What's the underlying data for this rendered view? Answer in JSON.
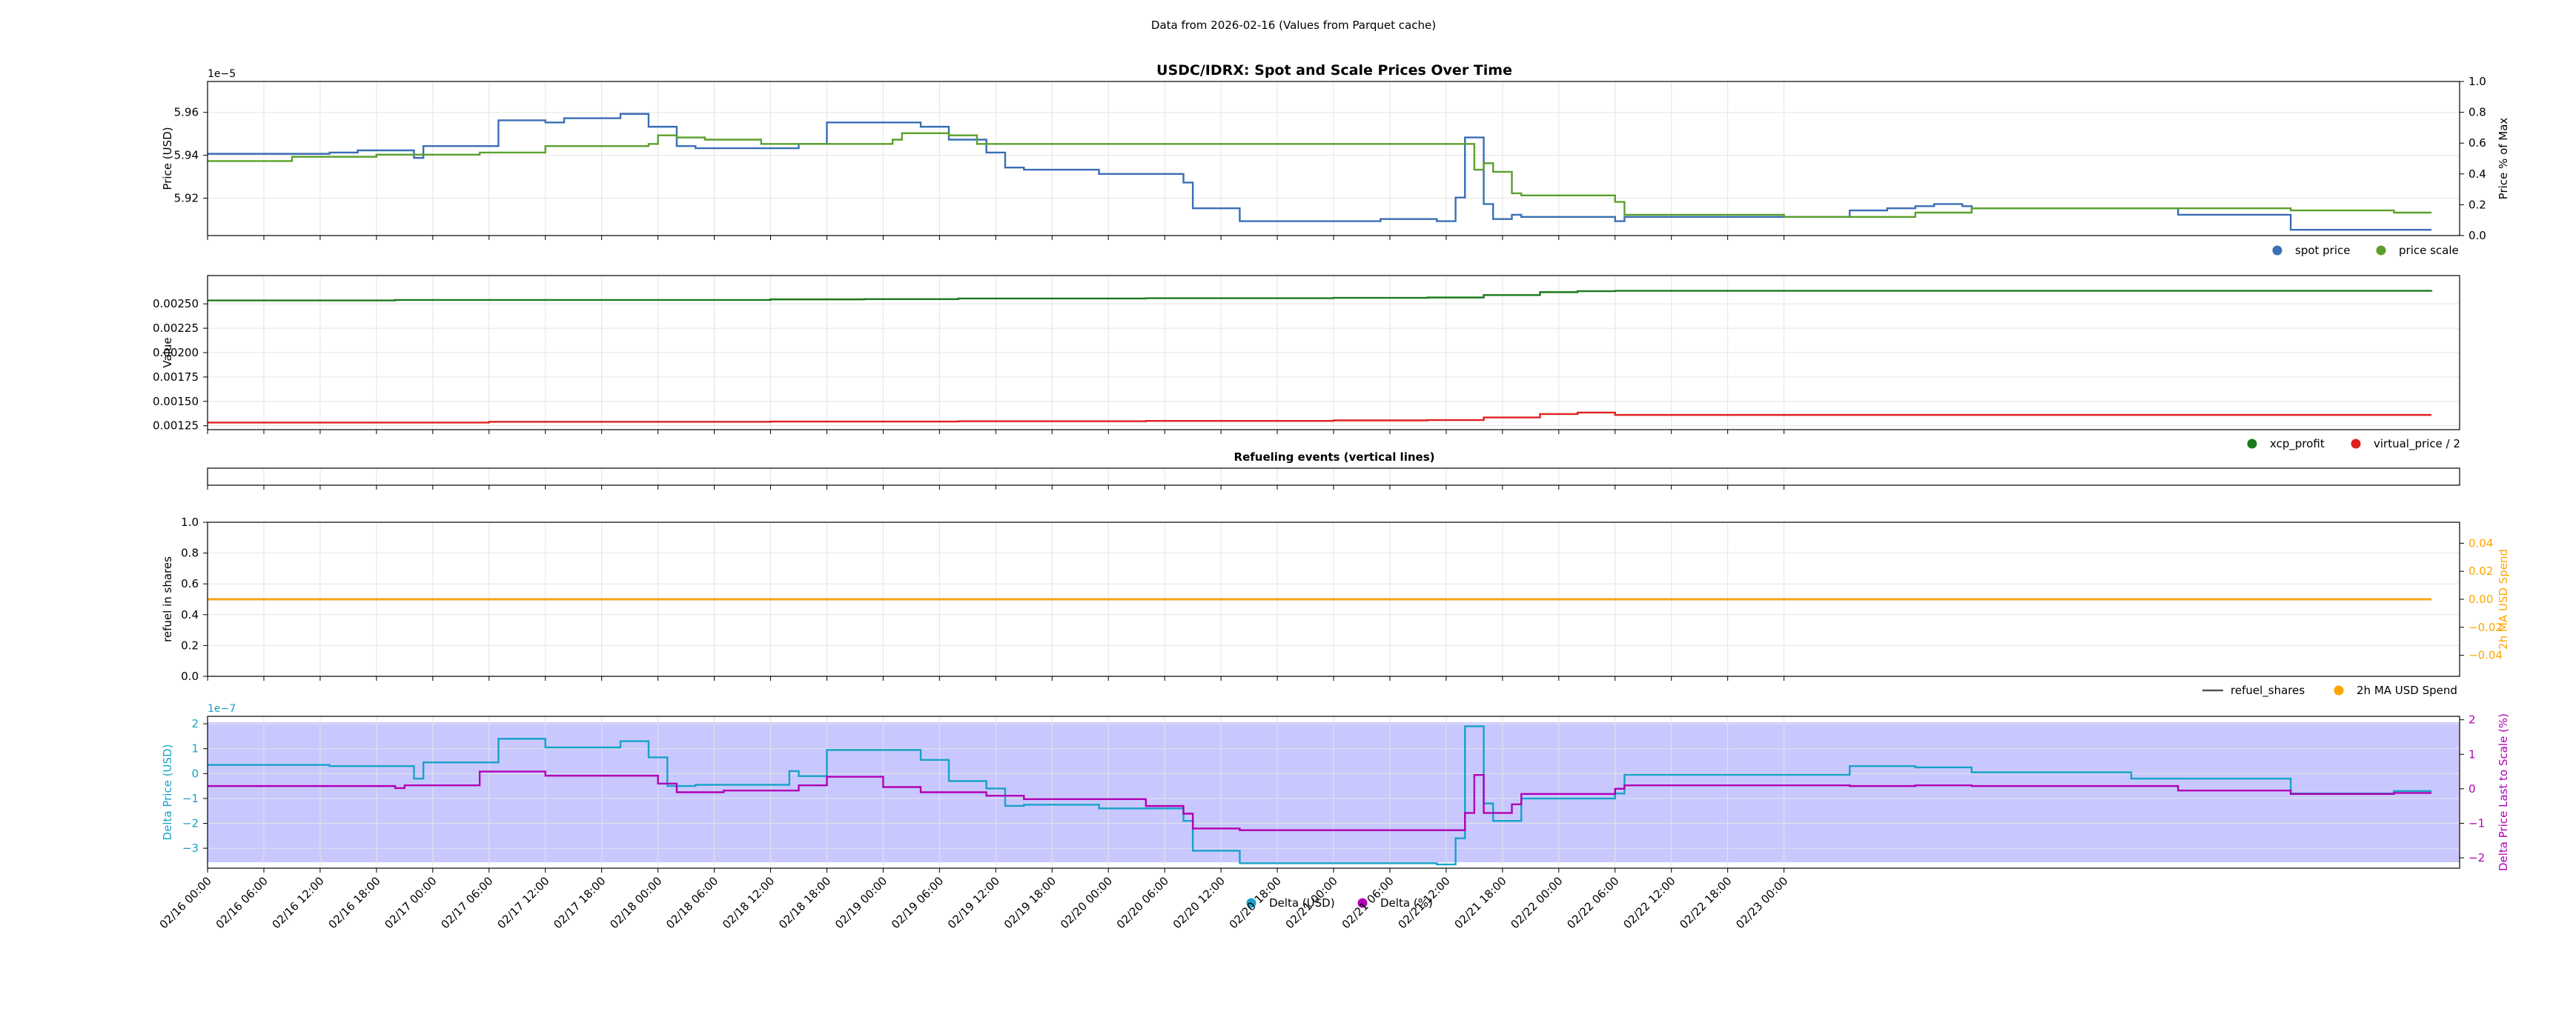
{
  "header": {
    "suptitle": "Data from 2026-02-16 (Values from Parquet cache)"
  },
  "x_axis": {
    "start": "02/16 00:00",
    "end": "02/23 00:00",
    "ticks": [
      "02/16 00:00",
      "02/16 06:00",
      "02/16 12:00",
      "02/16 18:00",
      "02/17 00:00",
      "02/17 06:00",
      "02/17 12:00",
      "02/17 18:00",
      "02/18 00:00",
      "02/18 06:00",
      "02/18 12:00",
      "02/18 18:00",
      "02/19 00:00",
      "02/19 06:00",
      "02/19 12:00",
      "02/19 18:00",
      "02/20 00:00",
      "02/20 06:00",
      "02/20 12:00",
      "02/20 18:00",
      "02/21 00:00",
      "02/21 06:00",
      "02/21 12:00",
      "02/21 18:00",
      "02/22 00:00",
      "02/22 06:00",
      "02/22 12:00",
      "02/22 18:00",
      "02/23 00:00"
    ]
  },
  "colors": {
    "spot": "#3a6eb5",
    "scale": "#5aa02c",
    "xcp": "#1b7a1b",
    "vp": "#e02020",
    "refuel": "#555555",
    "ma": "#ffa500",
    "delta_usd": "#17a2c8",
    "delta_pct": "#b000b5",
    "band": "#c8c8ff",
    "grid": "#e4e4e4"
  },
  "chart_data": [
    {
      "type": "line",
      "title": "USDC/IDRX: Spot and Scale Prices Over Time",
      "ylabel": "Price (USD)",
      "y_offset_label": "1e−5",
      "ylim": [
        5.9026,
        5.9744
      ],
      "yticks": [
        "5.92",
        "5.94",
        "5.96"
      ],
      "y2label": "Price % of Max",
      "y2lim": [
        0,
        1
      ],
      "y2ticks": [
        "0.0",
        "0.2",
        "0.4",
        "0.6",
        "0.8",
        "1.0"
      ],
      "grid": true,
      "legend": [
        "spot price",
        "price scale"
      ],
      "series": [
        {
          "name": "spot price",
          "color_key": "spot",
          "steps": [
            [
              0,
              5.9407
            ],
            [
              13,
              5.9413
            ],
            [
              16,
              5.9423
            ],
            [
              22,
              5.9388
            ],
            [
              23,
              5.9443
            ],
            [
              31,
              5.9563
            ],
            [
              36,
              5.9553
            ],
            [
              38,
              5.9573
            ],
            [
              44,
              5.9593
            ],
            [
              47,
              5.9533
            ],
            [
              50,
              5.9443
            ],
            [
              52,
              5.9433
            ],
            [
              60,
              5.9433
            ],
            [
              63,
              5.9453
            ],
            [
              66,
              5.9553
            ],
            [
              76,
              5.9533
            ],
            [
              79,
              5.9473
            ],
            [
              83,
              5.9413
            ],
            [
              85,
              5.9343
            ],
            [
              87,
              5.9333
            ],
            [
              95,
              5.9313
            ],
            [
              104,
              5.9273
            ],
            [
              105,
              5.9153
            ],
            [
              110,
              5.9093
            ],
            [
              125,
              5.9103
            ],
            [
              131,
              5.9093
            ],
            [
              133,
              5.9203
            ],
            [
              134,
              5.9483
            ],
            [
              136,
              5.9173
            ],
            [
              137,
              5.9103
            ],
            [
              139,
              5.9123
            ],
            [
              140,
              5.9113
            ],
            [
              150,
              5.9093
            ],
            [
              151,
              5.9113
            ],
            [
              175,
              5.9143
            ],
            [
              179,
              5.9153
            ],
            [
              182,
              5.9163
            ],
            [
              184,
              5.9173
            ],
            [
              187,
              5.9163
            ],
            [
              188,
              5.9153
            ],
            [
              210,
              5.9123
            ],
            [
              222,
              5.9053
            ],
            [
              237,
              5.9053
            ]
          ]
        },
        {
          "name": "price scale",
          "color_key": "scale",
          "steps": [
            [
              0,
              5.9373
            ],
            [
              9,
              5.9393
            ],
            [
              18,
              5.9403
            ],
            [
              29,
              5.9413
            ],
            [
              36,
              5.9443
            ],
            [
              47,
              5.9453
            ],
            [
              48,
              5.9493
            ],
            [
              50,
              5.9483
            ],
            [
              53,
              5.9473
            ],
            [
              59,
              5.9453
            ],
            [
              72,
              5.9453
            ],
            [
              73,
              5.9473
            ],
            [
              74,
              5.9503
            ],
            [
              79,
              5.9493
            ],
            [
              82,
              5.9453
            ],
            [
              134,
              5.9453
            ],
            [
              135,
              5.9333
            ],
            [
              136,
              5.9363
            ],
            [
              137,
              5.9323
            ],
            [
              139,
              5.9223
            ],
            [
              140,
              5.9213
            ],
            [
              150,
              5.9183
            ],
            [
              151,
              5.9123
            ],
            [
              168,
              5.9113
            ],
            [
              175,
              5.9113
            ],
            [
              182,
              5.9133
            ],
            [
              188,
              5.9153
            ],
            [
              222,
              5.9143
            ],
            [
              233,
              5.9133
            ],
            [
              237,
              5.9133
            ]
          ]
        }
      ]
    },
    {
      "type": "line",
      "ylabel": "Value",
      "ylim": [
        0.00121,
        0.00279
      ],
      "yticks": [
        "0.00125",
        "0.00150",
        "0.00175",
        "0.00200",
        "0.00225",
        "0.00250"
      ],
      "grid": true,
      "legend": [
        "xcp_profit",
        "virtual_price / 2"
      ],
      "series": [
        {
          "name": "xcp_profit",
          "color_key": "xcp",
          "steps": [
            [
              0,
              0.002535
            ],
            [
              20,
              0.00254
            ],
            [
              60,
              0.002546
            ],
            [
              70,
              0.002548
            ],
            [
              80,
              0.002555
            ],
            [
              100,
              0.002558
            ],
            [
              120,
              0.002562
            ],
            [
              130,
              0.002565
            ],
            [
              136,
              0.00259
            ],
            [
              142,
              0.00262
            ],
            [
              146,
              0.00263
            ],
            [
              150,
              0.002634
            ],
            [
              237,
              0.002637
            ]
          ]
        },
        {
          "name": "virtual_price / 2",
          "color_key": "vp",
          "steps": [
            [
              0,
              0.001283
            ],
            [
              30,
              0.00129
            ],
            [
              60,
              0.001293
            ],
            [
              80,
              0.001296
            ],
            [
              100,
              0.0013
            ],
            [
              120,
              0.001305
            ],
            [
              130,
              0.001308
            ],
            [
              136,
              0.001335
            ],
            [
              142,
              0.00137
            ],
            [
              146,
              0.001385
            ],
            [
              150,
              0.001361
            ],
            [
              237,
              0.001361
            ]
          ]
        }
      ]
    },
    {
      "type": "line",
      "title": "Refueling events (vertical lines)",
      "series": []
    },
    {
      "type": "line",
      "ylabel": "refuel in shares",
      "ylim": [
        0,
        1
      ],
      "yticks": [
        "0.0",
        "0.2",
        "0.4",
        "0.6",
        "0.8",
        "1.0"
      ],
      "y2label": "2h MA USD Spend",
      "y2lim": [
        -0.055,
        0.055
      ],
      "y2ticks": [
        "−0.04",
        "−0.02",
        "0.00",
        "0.02",
        "0.04"
      ],
      "grid": true,
      "legend": [
        "refuel_shares",
        "2h MA USD Spend"
      ],
      "series": [
        {
          "name": "refuel_shares",
          "color_key": "refuel",
          "steps": [
            [
              0,
              0.5
            ],
            [
              237,
              0.5
            ]
          ]
        },
        {
          "name": "2h MA USD Spend",
          "color_key": "ma",
          "steps": [
            [
              0,
              0.0
            ],
            [
              237,
              0.0
            ]
          ]
        }
      ]
    },
    {
      "type": "line",
      "ylabel": "Delta Price (USD)",
      "y_offset_label": "1e−7",
      "ylim": [
        -3.8,
        2.3
      ],
      "yticks": [
        "−3",
        "−2",
        "−1",
        "0",
        "1",
        "2"
      ],
      "y2label": "Delta Price Last to Scale (%)",
      "y2lim": [
        -2.3,
        2.1
      ],
      "y2ticks": [
        "−2",
        "−1",
        "0",
        "1",
        "2"
      ],
      "grid": true,
      "legend": [
        "Delta (USD)",
        "Delta (%)"
      ],
      "series": [
        {
          "name": "Delta (USD)",
          "color_key": "delta_usd",
          "steps": [
            [
              0,
              0.35
            ],
            [
              13,
              0.3
            ],
            [
              22,
              -0.2
            ],
            [
              23,
              0.45
            ],
            [
              31,
              1.4
            ],
            [
              36,
              1.05
            ],
            [
              44,
              1.3
            ],
            [
              47,
              0.65
            ],
            [
              49,
              -0.5
            ],
            [
              52,
              -0.45
            ],
            [
              62,
              0.1
            ],
            [
              63,
              -0.1
            ],
            [
              66,
              0.95
            ],
            [
              76,
              0.55
            ],
            [
              79,
              -0.3
            ],
            [
              83,
              -0.6
            ],
            [
              85,
              -1.3
            ],
            [
              87,
              -1.25
            ],
            [
              95,
              -1.4
            ],
            [
              104,
              -1.9
            ],
            [
              105,
              -3.1
            ],
            [
              110,
              -3.6
            ],
            [
              131,
              -3.65
            ],
            [
              133,
              -2.6
            ],
            [
              134,
              1.9
            ],
            [
              136,
              -1.2
            ],
            [
              137,
              -1.9
            ],
            [
              140,
              -1.0
            ],
            [
              150,
              -0.8
            ],
            [
              151,
              -0.05
            ],
            [
              168,
              -0.05
            ],
            [
              175,
              0.3
            ],
            [
              182,
              0.25
            ],
            [
              188,
              0.05
            ],
            [
              205,
              -0.2
            ],
            [
              214,
              -0.2
            ],
            [
              222,
              -0.8
            ],
            [
              233,
              -0.7
            ],
            [
              237,
              -0.7
            ]
          ]
        },
        {
          "name": "Delta (%)",
          "color_key": "delta_pct",
          "steps": [
            [
              0,
              0.08
            ],
            [
              20,
              0.02
            ],
            [
              21,
              0.1
            ],
            [
              29,
              0.5
            ],
            [
              36,
              0.38
            ],
            [
              48,
              0.15
            ],
            [
              50,
              -0.1
            ],
            [
              55,
              -0.05
            ],
            [
              63,
              0.1
            ],
            [
              66,
              0.35
            ],
            [
              72,
              0.05
            ],
            [
              76,
              -0.1
            ],
            [
              83,
              -0.2
            ],
            [
              87,
              -0.3
            ],
            [
              100,
              -0.5
            ],
            [
              104,
              -0.72
            ],
            [
              105,
              -1.15
            ],
            [
              110,
              -1.2
            ],
            [
              134,
              -0.7
            ],
            [
              135,
              0.4
            ],
            [
              136,
              -0.7
            ],
            [
              139,
              -0.45
            ],
            [
              140,
              -0.15
            ],
            [
              150,
              0.0
            ],
            [
              151,
              0.1
            ],
            [
              175,
              0.08
            ],
            [
              182,
              0.1
            ],
            [
              188,
              0.08
            ],
            [
              210,
              -0.05
            ],
            [
              222,
              -0.15
            ],
            [
              233,
              -0.12
            ],
            [
              237,
              -0.12
            ]
          ]
        }
      ]
    }
  ]
}
